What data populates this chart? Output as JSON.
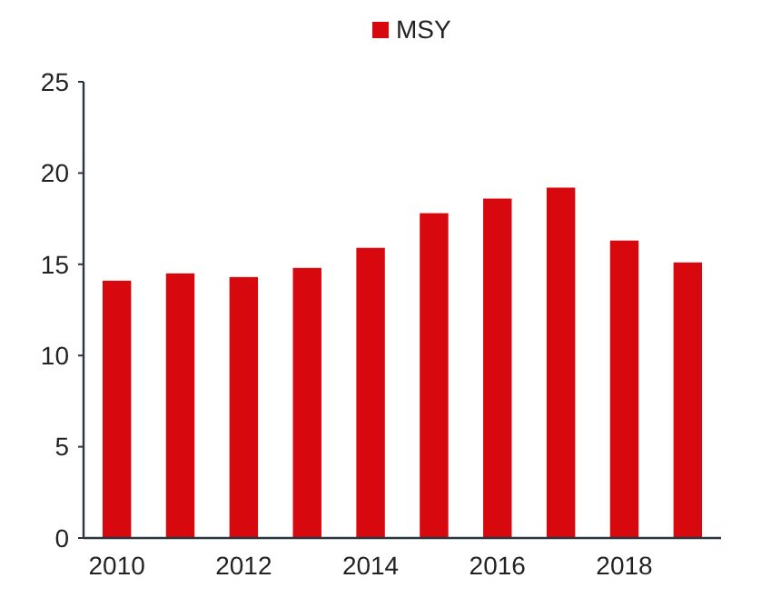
{
  "chart_data": {
    "type": "bar",
    "categories": [
      "2010",
      null,
      "2012",
      null,
      "2014",
      null,
      "2016",
      null,
      "2018",
      null
    ],
    "series": [
      {
        "name": "MSY",
        "color": "#d7090f",
        "values": [
          14.1,
          14.5,
          14.3,
          14.8,
          15.9,
          17.8,
          18.6,
          19.2,
          16.3,
          15.1
        ]
      }
    ],
    "ylim": [
      0,
      25
    ],
    "yticks": [
      0,
      5,
      10,
      15,
      20,
      25
    ],
    "grid": false,
    "legend": "top"
  }
}
